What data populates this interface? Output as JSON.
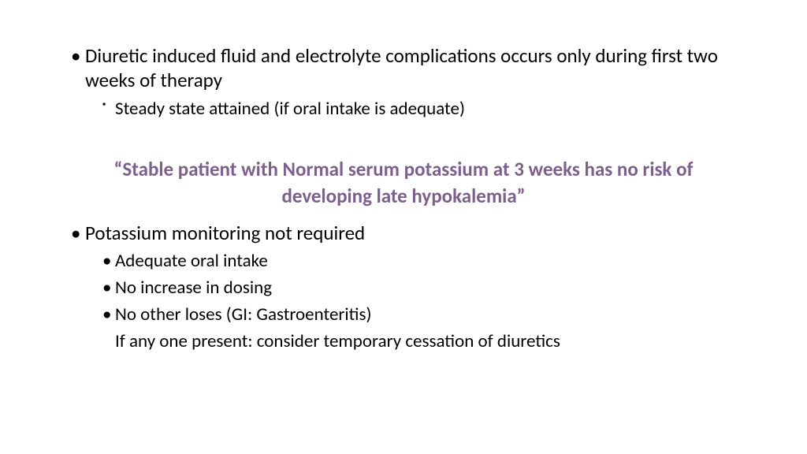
{
  "colors": {
    "background": "#ffffff",
    "text": "#000000",
    "accent": "#7d5f8c"
  },
  "typography": {
    "body_fontsize": 25,
    "sub_fontsize": 23,
    "quote_fontsize": 25,
    "quote_weight": 700
  },
  "content": {
    "bullet1": "Diuretic induced fluid and electrolyte complications occurs only during first two weeks of therapy",
    "bullet1_sub1": "Steady state attained (if oral intake is adequate)",
    "quote": "“Stable patient with Normal serum potassium at 3 weeks has no risk of developing late hypokalemia”",
    "bullet2": "Potassium monitoring not required",
    "bullet2_sub1": " Adequate oral intake",
    "bullet2_sub2": "No increase in dosing",
    "bullet2_sub3": "No other loses (GI: Gastroenteritis)",
    "bullet2_note": "If any one present: consider temporary cessation of diuretics"
  }
}
